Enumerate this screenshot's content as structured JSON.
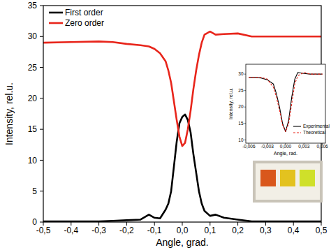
{
  "chart_data": [
    {
      "type": "line",
      "x_label": "Angle, grad.",
      "y_label": "Intensity, rel.u.",
      "x": [
        -0.5,
        -0.4,
        -0.3,
        -0.25,
        -0.2,
        -0.15,
        -0.12,
        -0.1,
        -0.08,
        -0.06,
        -0.05,
        -0.04,
        -0.03,
        -0.02,
        -0.01,
        0,
        0.01,
        0.02,
        0.03,
        0.04,
        0.05,
        0.06,
        0.07,
        0.08,
        0.1,
        0.12,
        0.15,
        0.2,
        0.25,
        0.3,
        0.4,
        0.5
      ],
      "series": [
        {
          "name": "First order",
          "color": "#000000",
          "line_style": "solid",
          "values": [
            0.1,
            0.1,
            0.1,
            0.2,
            0.3,
            0.4,
            1.2,
            0.7,
            0.6,
            2,
            3,
            5,
            9,
            13,
            16,
            17,
            17.4,
            16.5,
            14.5,
            11,
            8,
            5,
            3,
            1.8,
            1,
            1.2,
            0.7,
            0.4,
            0.1,
            0.1,
            0.1,
            0.1
          ]
        },
        {
          "name": "Zero order",
          "color": "#e8251b",
          "line_style": "solid",
          "values": [
            29,
            29.1,
            29.2,
            29.1,
            28.8,
            28.6,
            28.4,
            28,
            27.3,
            26,
            24.5,
            22.5,
            19.5,
            16.5,
            13.8,
            12.3,
            12.8,
            15,
            18,
            21.5,
            24.5,
            27,
            29,
            30.3,
            30.8,
            30.3,
            30.4,
            30.5,
            30,
            30,
            30,
            30
          ]
        }
      ],
      "xlim": [
        -0.5,
        0.5
      ],
      "xticks": [
        {
          "value": -0.5,
          "label": "-0,5"
        },
        {
          "value": -0.4,
          "label": "-0,4"
        },
        {
          "value": -0.3,
          "label": "-0,3"
        },
        {
          "value": -0.2,
          "label": "-0,2"
        },
        {
          "value": -0.1,
          "label": "-0,1"
        },
        {
          "value": 0,
          "label": "0,0"
        },
        {
          "value": 0.1,
          "label": "0,1"
        },
        {
          "value": 0.2,
          "label": "0,2"
        },
        {
          "value": 0.3,
          "label": "0,3"
        },
        {
          "value": 0.4,
          "label": "0,4"
        },
        {
          "value": 0.5,
          "label": "0,5"
        }
      ],
      "ylim": [
        0,
        35
      ],
      "yticks": [
        0,
        5,
        10,
        15,
        20,
        25,
        30,
        35
      ],
      "grid": false,
      "legend": "upper left"
    },
    {
      "type": "line",
      "x_label": "Angle, rad.",
      "y_label": "Intensity, rel.u.",
      "x": [
        -0.006,
        -0.005,
        -0.004,
        -0.003,
        -0.002,
        -0.0015,
        -0.001,
        -0.0005,
        0,
        0.0005,
        0.001,
        0.0015,
        0.002,
        0.003,
        0.004,
        0.005,
        0.006
      ],
      "series": [
        {
          "name": "Experimental",
          "color": "#000000",
          "line_style": "solid",
          "values": [
            29,
            29,
            28.8,
            28.3,
            27,
            24,
            20,
            15,
            12.5,
            16,
            23,
            28.5,
            30.5,
            30.2,
            30,
            30,
            30
          ]
        },
        {
          "name": "Theoretical",
          "color": "#e8251b",
          "line_style": "dashed",
          "values": [
            29,
            29,
            29,
            28.5,
            26,
            23,
            19,
            14.5,
            12.5,
            15,
            21,
            27,
            29.5,
            30.5,
            30,
            30,
            30
          ]
        }
      ],
      "xlim": [
        -0.0065,
        0.0065
      ],
      "xticks": [
        {
          "value": -0.006,
          "label": "-0,006"
        },
        {
          "value": -0.003,
          "label": "-0,003"
        },
        {
          "value": 0,
          "label": "0,000"
        },
        {
          "value": 0.003,
          "label": "0,003"
        },
        {
          "value": 0.006,
          "label": "0,006"
        }
      ],
      "ylim": [
        9,
        33
      ],
      "yticks": [
        10,
        15,
        20,
        25,
        30
      ],
      "grid": false,
      "legend": "lower right"
    }
  ]
}
